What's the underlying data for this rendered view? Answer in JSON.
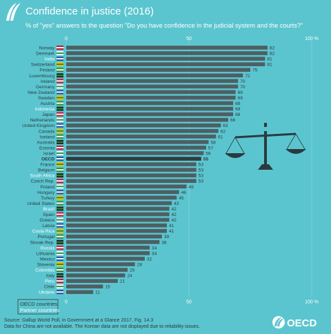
{
  "header": {
    "title": "Confidence in justice (2016)",
    "subtitle": "% of \"yes\" answers to the question \"Do you have confidence in the judicial system and the courts?\""
  },
  "legend": {
    "oecd_label": "OECD countries",
    "partner_label": "Partner countries"
  },
  "footer": {
    "source": "Source: Gallup World Poll, in Government at a Glance 2017, Fig. 14.3",
    "note": "Data for China are not available. The Korean data are not displayed due to reliability issues.",
    "logo_text": "OECD"
  },
  "colors": {
    "background": "#5bc5cf",
    "bar": "#4d5f63",
    "bar_highlight": "#2e3c40",
    "oecd_label": "#2b3a3e",
    "partner_label": "#ffffff",
    "axis_text": "#ffffff"
  },
  "chart_data": {
    "type": "bar",
    "orientation": "horizontal",
    "xlim": [
      0,
      100
    ],
    "ticks": [
      {
        "value": 0,
        "label": "0"
      },
      {
        "value": 50,
        "label": "50"
      },
      {
        "value": 100,
        "label": "100 %"
      }
    ],
    "categories": [
      "Norway",
      "Denmark",
      "India",
      "Switzerland",
      "Finland",
      "Luxembourg",
      "Ireland",
      "Germany",
      "New Zealand",
      "Sweden",
      "Austria",
      "Indonesia",
      "Japan",
      "Netherlands",
      "United Kingdom",
      "Canada",
      "Iceland",
      "Australia",
      "Estonia",
      "Israel",
      "OECD",
      "France",
      "Belgium",
      "South Africa",
      "Czech Rep.",
      "Poland",
      "Hungary",
      "Turkey",
      "United States",
      "Brazil",
      "Spain",
      "Greece",
      "Latvia",
      "Costa Rica",
      "Portugal",
      "Slovak Rep.",
      "Russia",
      "Lithuania",
      "Mexico",
      "Slovenia",
      "Colombia",
      "Italy",
      "Peru",
      "Chile",
      "Ukraine"
    ],
    "values": [
      82,
      82,
      81,
      81,
      75,
      72,
      70,
      70,
      69,
      69,
      68,
      68,
      68,
      66,
      63,
      62,
      61,
      58,
      57,
      56,
      55,
      53,
      53,
      53,
      53,
      49,
      46,
      45,
      43,
      42,
      42,
      42,
      41,
      41,
      39,
      38,
      34,
      34,
      32,
      28,
      25,
      24,
      21,
      15,
      11
    ],
    "partner": [
      "India",
      "Indonesia",
      "South Africa",
      "Brazil",
      "Costa Rica",
      "Russia",
      "Colombia",
      "Peru",
      "Ukraine"
    ],
    "highlight": [
      "OECD"
    ]
  }
}
